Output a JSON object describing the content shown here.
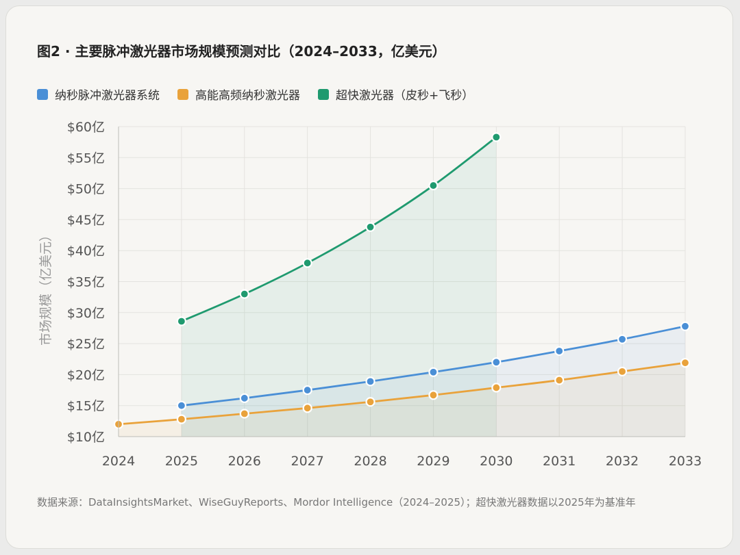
{
  "chart_data": {
    "type": "line",
    "title": "图2 · 主要脉冲激光器市场规模预测对比（2024–2033，亿美元）",
    "ylabel": "市场规模（亿美元）",
    "xlabel": "",
    "categories": [
      "2024",
      "2025",
      "2026",
      "2027",
      "2028",
      "2029",
      "2030",
      "2031",
      "2032",
      "2033"
    ],
    "ylim": [
      10,
      60
    ],
    "yticks": [
      "$10亿",
      "$15亿",
      "$20亿",
      "$25亿",
      "$30亿",
      "$35亿",
      "$40亿",
      "$45亿",
      "$50亿",
      "$55亿",
      "$60亿"
    ],
    "ytick_values": [
      10,
      15,
      20,
      25,
      30,
      35,
      40,
      45,
      50,
      55,
      60
    ],
    "grid": true,
    "legend_position": "top-left",
    "series": [
      {
        "name": "纳秒脉冲激光器系统",
        "color": "#4a8fd6",
        "values": [
          null,
          15.0,
          16.2,
          17.5,
          18.9,
          20.4,
          22.0,
          23.8,
          25.7,
          27.8
        ]
      },
      {
        "name": "高能高频纳秒激光器",
        "color": "#e9a23b",
        "values": [
          12.0,
          12.8,
          13.7,
          14.6,
          15.6,
          16.7,
          17.9,
          19.1,
          20.5,
          21.9
        ]
      },
      {
        "name": "超快激光器（皮秒+飞秒）",
        "color": "#1f9a6f",
        "values": [
          null,
          28.6,
          33.0,
          38.0,
          43.8,
          50.5,
          58.3,
          null,
          null,
          null
        ]
      }
    ],
    "source_note": "数据来源：DataInsightsMarket、WiseGuyReports、Mordor Intelligence（2024–2025）；超快激光器数据以2025年为基准年"
  }
}
